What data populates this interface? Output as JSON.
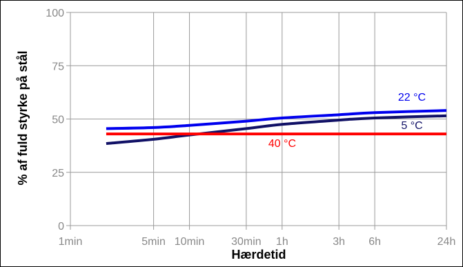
{
  "chart_data": {
    "type": "line",
    "xlabel": "Hærdetid",
    "ylabel": "% af fuld styrke på stål",
    "x_scale": "log",
    "x_unit": "minutes",
    "x_ticks": [
      {
        "value": 1,
        "label": "1min"
      },
      {
        "value": 5,
        "label": "5min"
      },
      {
        "value": 10,
        "label": "10min"
      },
      {
        "value": 30,
        "label": "30min"
      },
      {
        "value": 60,
        "label": "1h"
      },
      {
        "value": 180,
        "label": "3h"
      },
      {
        "value": 360,
        "label": "6h"
      },
      {
        "value": 1440,
        "label": "24h"
      }
    ],
    "y_ticks": [
      0,
      25,
      50,
      75,
      100
    ],
    "xlim": [
      1,
      1440
    ],
    "ylim": [
      0,
      100
    ],
    "grid": true,
    "series": [
      {
        "name": "22 °C",
        "color": "#0000ee",
        "x": [
          2,
          5,
          10,
          30,
          60,
          180,
          360,
          1440
        ],
        "values": [
          45.5,
          46,
          47,
          49,
          50.5,
          52,
          53,
          54
        ]
      },
      {
        "name": "5 °C",
        "color": "#111166",
        "x": [
          2,
          5,
          10,
          30,
          60,
          180,
          360,
          1440
        ],
        "values": [
          38.5,
          40.5,
          42.5,
          45.5,
          47.5,
          49.5,
          50.5,
          51.5
        ]
      },
      {
        "name": "40 °C",
        "color": "#ff0000",
        "x": [
          2,
          5,
          10,
          30,
          60,
          180,
          360,
          1440
        ],
        "values": [
          43,
          43,
          43,
          43,
          43,
          43,
          43,
          43
        ]
      }
    ]
  }
}
